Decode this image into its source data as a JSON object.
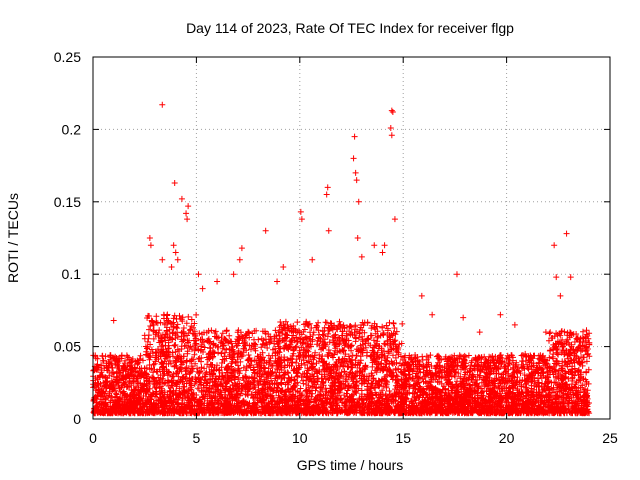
{
  "chart_data": {
    "type": "scatter",
    "title": "Day 114 of 2023, Rate Of TEC Index for receiver flgp",
    "xlabel": "GPS time / hours",
    "ylabel": "ROTI / TECUs",
    "xlim": [
      0,
      25
    ],
    "ylim": [
      0,
      0.25
    ],
    "x_ticks": [
      "0",
      "5",
      "10",
      "15",
      "20",
      "25"
    ],
    "y_ticks": [
      "0",
      "0.05",
      "0.1",
      "0.15",
      "0.2",
      "0.25"
    ],
    "grid": true,
    "marker": "plus",
    "color": "#ff0000",
    "series": [
      {
        "name": "ROTI",
        "x": [
          3.35,
          14.45,
          14.5,
          12.65,
          14.4,
          14.45,
          12.7,
          12.6,
          12.75,
          3.95,
          11.35,
          4.6,
          4.5,
          4.55,
          11.3,
          4.3,
          10.05,
          10.1,
          22.9,
          2.75,
          2.8,
          3.9,
          4.0,
          4.1,
          8.35,
          7.2,
          7.1,
          11.4,
          12.8,
          13.6,
          14.0,
          14.1,
          14.6,
          17.6,
          22.3,
          22.4,
          23.1,
          1.0,
          5.1,
          6.0,
          9.2,
          15.9,
          19.7,
          20.4,
          21.9,
          3.35,
          3.8,
          12.85,
          17.9,
          6.8,
          5.3,
          8.9,
          10.6,
          13.0,
          16.4,
          18.7,
          20.9,
          22.6
        ],
        "y": [
          0.217,
          0.213,
          0.212,
          0.195,
          0.201,
          0.196,
          0.17,
          0.18,
          0.165,
          0.163,
          0.16,
          0.147,
          0.142,
          0.138,
          0.155,
          0.152,
          0.143,
          0.138,
          0.128,
          0.125,
          0.12,
          0.12,
          0.115,
          0.11,
          0.13,
          0.118,
          0.11,
          0.13,
          0.125,
          0.12,
          0.115,
          0.12,
          0.138,
          0.1,
          0.12,
          0.098,
          0.098,
          0.068,
          0.1,
          0.095,
          0.105,
          0.085,
          0.072,
          0.065,
          0.06,
          0.11,
          0.105,
          0.15,
          0.07,
          0.1,
          0.09,
          0.095,
          0.11,
          0.112,
          0.072,
          0.06,
          0.045,
          0.085
        ]
      }
    ]
  }
}
